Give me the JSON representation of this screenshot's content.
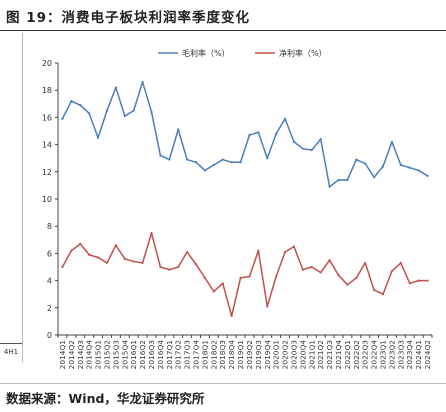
{
  "figure_title": "图 19：消费电子板块利润率季度变化",
  "source_note": "数据来源：Wind，华龙证券研究所",
  "left_panel_label": "4H1",
  "chart_data": {
    "type": "line",
    "title": "",
    "xlabel": "",
    "ylabel": "",
    "ylim": [
      0,
      20
    ],
    "yticks": [
      0,
      2,
      4,
      6,
      8,
      10,
      12,
      14,
      16,
      18,
      20
    ],
    "grid": false,
    "legend_position": "top-center",
    "categories": [
      "2014Q1",
      "2014Q2",
      "2014Q3",
      "2014Q4",
      "2015Q1",
      "2015Q2",
      "2015Q3",
      "2015Q4",
      "2016Q1",
      "2016Q2",
      "2016Q3",
      "2016Q4",
      "2017Q1",
      "2017Q2",
      "2017Q3",
      "2017Q4",
      "2018Q1",
      "2018Q2",
      "2018Q3",
      "2018Q4",
      "2019Q1",
      "2019Q2",
      "2019Q3",
      "2019Q4",
      "2020Q1",
      "2020Q2",
      "2020Q3",
      "2020Q4",
      "2021Q1",
      "2021Q2",
      "2021Q3",
      "2021Q4",
      "2022Q1",
      "2022Q2",
      "2022Q3",
      "2022Q4",
      "2023Q1",
      "2023Q2",
      "2023Q3",
      "2023Q4",
      "2024Q1",
      "2024Q2"
    ],
    "series": [
      {
        "name": "毛利率（%）",
        "color": "#4a7ebb",
        "values": [
          15.9,
          17.2,
          16.9,
          16.3,
          14.5,
          16.5,
          18.2,
          16.1,
          16.5,
          18.6,
          16.4,
          13.2,
          12.9,
          15.1,
          12.9,
          12.7,
          12.1,
          12.5,
          12.9,
          12.7,
          12.7,
          14.7,
          14.9,
          13.0,
          14.8,
          15.9,
          14.2,
          13.7,
          13.6,
          14.4,
          10.9,
          11.4,
          11.4,
          12.9,
          12.6,
          11.6,
          12.4,
          14.2,
          12.5,
          12.3,
          12.1,
          11.7
        ]
      },
      {
        "name": "净利率（%）",
        "color": "#c0504d",
        "values": [
          5.0,
          6.2,
          6.7,
          5.9,
          5.7,
          5.3,
          6.6,
          5.6,
          5.4,
          5.3,
          7.5,
          5.0,
          4.8,
          5.0,
          6.1,
          5.2,
          4.2,
          3.2,
          3.8,
          1.4,
          4.2,
          4.3,
          6.2,
          2.1,
          4.3,
          6.1,
          6.5,
          4.8,
          5.0,
          4.6,
          5.5,
          4.4,
          3.7,
          4.2,
          5.3,
          3.3,
          3.0,
          4.7,
          5.3,
          3.8,
          4.0,
          4.0
        ]
      }
    ]
  }
}
